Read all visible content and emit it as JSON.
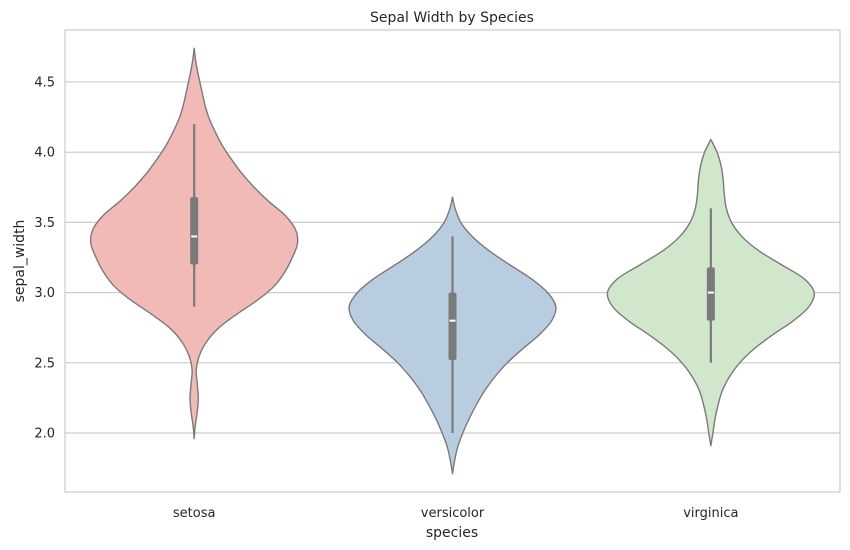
{
  "chart_data": {
    "type": "violin",
    "title": "Sepal Width by Species",
    "xlabel": "species",
    "ylabel": "sepal_width",
    "categories": [
      "setosa",
      "versicolor",
      "virginica"
    ],
    "ylim": [
      1.58,
      4.87
    ],
    "yticks": [
      2.0,
      2.5,
      3.0,
      3.5,
      4.0,
      4.5
    ],
    "ytick_labels": [
      "2.0",
      "2.5",
      "3.0",
      "3.5",
      "4.0",
      "4.5"
    ],
    "grid": "horizontal",
    "violin_edge_color": "#7a7a7a",
    "box_color": "#7a7a7a",
    "median_color": "#ffffff",
    "series": [
      {
        "category": "setosa",
        "color": "#f2bab6",
        "min": 2.3,
        "q1": 3.2,
        "median": 3.4,
        "q3": 3.68,
        "max": 4.4,
        "whisker_low": 2.9,
        "whisker_high": 4.2,
        "density": [
          [
            1.96,
            0.0
          ],
          [
            2.05,
            0.01
          ],
          [
            2.15,
            0.03
          ],
          [
            2.25,
            0.04
          ],
          [
            2.35,
            0.03
          ],
          [
            2.45,
            0.02
          ],
          [
            2.55,
            0.05
          ],
          [
            2.65,
            0.12
          ],
          [
            2.75,
            0.24
          ],
          [
            2.85,
            0.42
          ],
          [
            2.95,
            0.62
          ],
          [
            3.05,
            0.78
          ],
          [
            3.15,
            0.88
          ],
          [
            3.25,
            0.95
          ],
          [
            3.35,
            1.0
          ],
          [
            3.45,
            0.98
          ],
          [
            3.55,
            0.88
          ],
          [
            3.65,
            0.72
          ],
          [
            3.75,
            0.58
          ],
          [
            3.85,
            0.46
          ],
          [
            3.95,
            0.36
          ],
          [
            4.05,
            0.27
          ],
          [
            4.15,
            0.2
          ],
          [
            4.25,
            0.14
          ],
          [
            4.35,
            0.1
          ],
          [
            4.45,
            0.07
          ],
          [
            4.55,
            0.04
          ],
          [
            4.65,
            0.015
          ],
          [
            4.74,
            0.0
          ]
        ]
      },
      {
        "category": "versicolor",
        "color": "#b9cde0",
        "min": 2.0,
        "q1": 2.52,
        "median": 2.8,
        "q3": 3.0,
        "max": 3.4,
        "whisker_low": 2.0,
        "whisker_high": 3.4,
        "density": [
          [
            1.71,
            0.0
          ],
          [
            1.8,
            0.02
          ],
          [
            1.9,
            0.05
          ],
          [
            2.0,
            0.1
          ],
          [
            2.1,
            0.16
          ],
          [
            2.2,
            0.23
          ],
          [
            2.3,
            0.31
          ],
          [
            2.4,
            0.41
          ],
          [
            2.5,
            0.53
          ],
          [
            2.6,
            0.68
          ],
          [
            2.7,
            0.84
          ],
          [
            2.8,
            0.96
          ],
          [
            2.9,
            1.0
          ],
          [
            3.0,
            0.92
          ],
          [
            3.1,
            0.76
          ],
          [
            3.2,
            0.55
          ],
          [
            3.3,
            0.35
          ],
          [
            3.4,
            0.19
          ],
          [
            3.5,
            0.08
          ],
          [
            3.6,
            0.025
          ],
          [
            3.68,
            0.0
          ]
        ]
      },
      {
        "category": "virginica",
        "color": "#d1e7cb",
        "min": 2.2,
        "q1": 2.8,
        "median": 3.0,
        "q3": 3.18,
        "max": 3.8,
        "whisker_low": 2.5,
        "whisker_high": 3.6,
        "density": [
          [
            1.91,
            0.0
          ],
          [
            2.0,
            0.02
          ],
          [
            2.1,
            0.04
          ],
          [
            2.2,
            0.07
          ],
          [
            2.3,
            0.11
          ],
          [
            2.4,
            0.18
          ],
          [
            2.5,
            0.28
          ],
          [
            2.6,
            0.42
          ],
          [
            2.7,
            0.6
          ],
          [
            2.8,
            0.8
          ],
          [
            2.9,
            0.95
          ],
          [
            3.0,
            1.0
          ],
          [
            3.1,
            0.9
          ],
          [
            3.2,
            0.68
          ],
          [
            3.3,
            0.46
          ],
          [
            3.4,
            0.3
          ],
          [
            3.5,
            0.2
          ],
          [
            3.6,
            0.15
          ],
          [
            3.7,
            0.13
          ],
          [
            3.8,
            0.12
          ],
          [
            3.9,
            0.1
          ],
          [
            4.0,
            0.06
          ],
          [
            4.09,
            0.0
          ]
        ]
      }
    ]
  }
}
